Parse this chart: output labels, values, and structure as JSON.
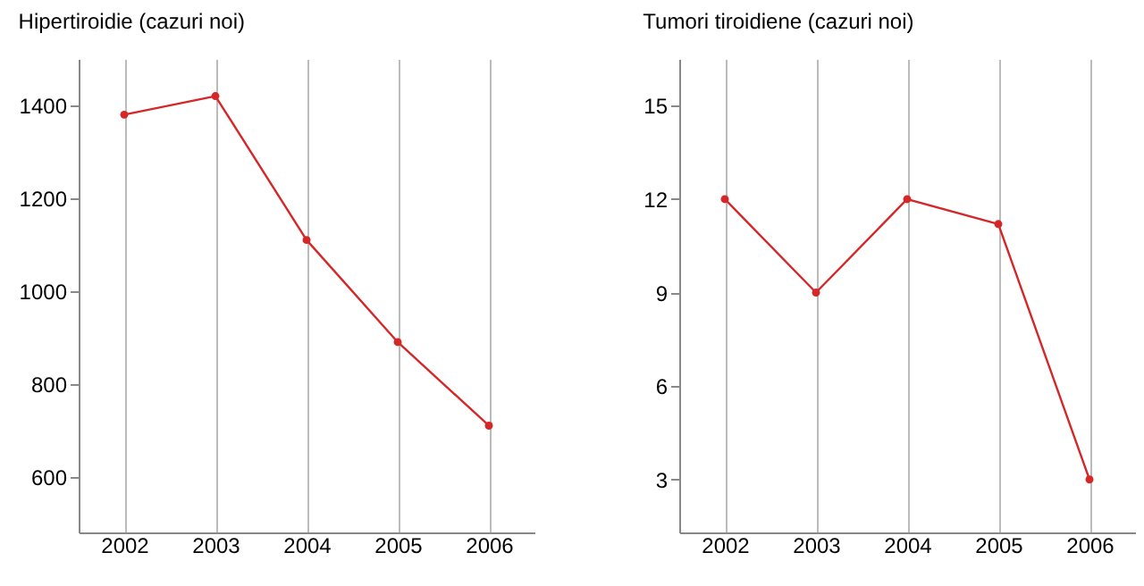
{
  "chart_data": [
    {
      "type": "line",
      "title": "Hipertiroidie (cazuri noi)",
      "categories": [
        "2002",
        "2003",
        "2004",
        "2005",
        "2006"
      ],
      "series": [
        {
          "color": "#d62728",
          "values": [
            1380,
            1420,
            1110,
            890,
            710
          ]
        }
      ],
      "ylim": [
        480,
        1500
      ],
      "yticks": [
        600,
        800,
        1000,
        1200,
        1400
      ],
      "grid": "x",
      "marker": "circle"
    },
    {
      "type": "line",
      "title": "Tumori tiroidiene (cazuri noi)",
      "categories": [
        "2002",
        "2003",
        "2004",
        "2005",
        "2006"
      ],
      "series": [
        {
          "color": "#d62728",
          "values": [
            12,
            9,
            12,
            11.2,
            3
          ]
        }
      ],
      "ylim": [
        1.3,
        16.5
      ],
      "yticks": [
        3,
        6,
        9,
        12,
        15
      ],
      "grid": "x",
      "marker": "circle"
    }
  ]
}
